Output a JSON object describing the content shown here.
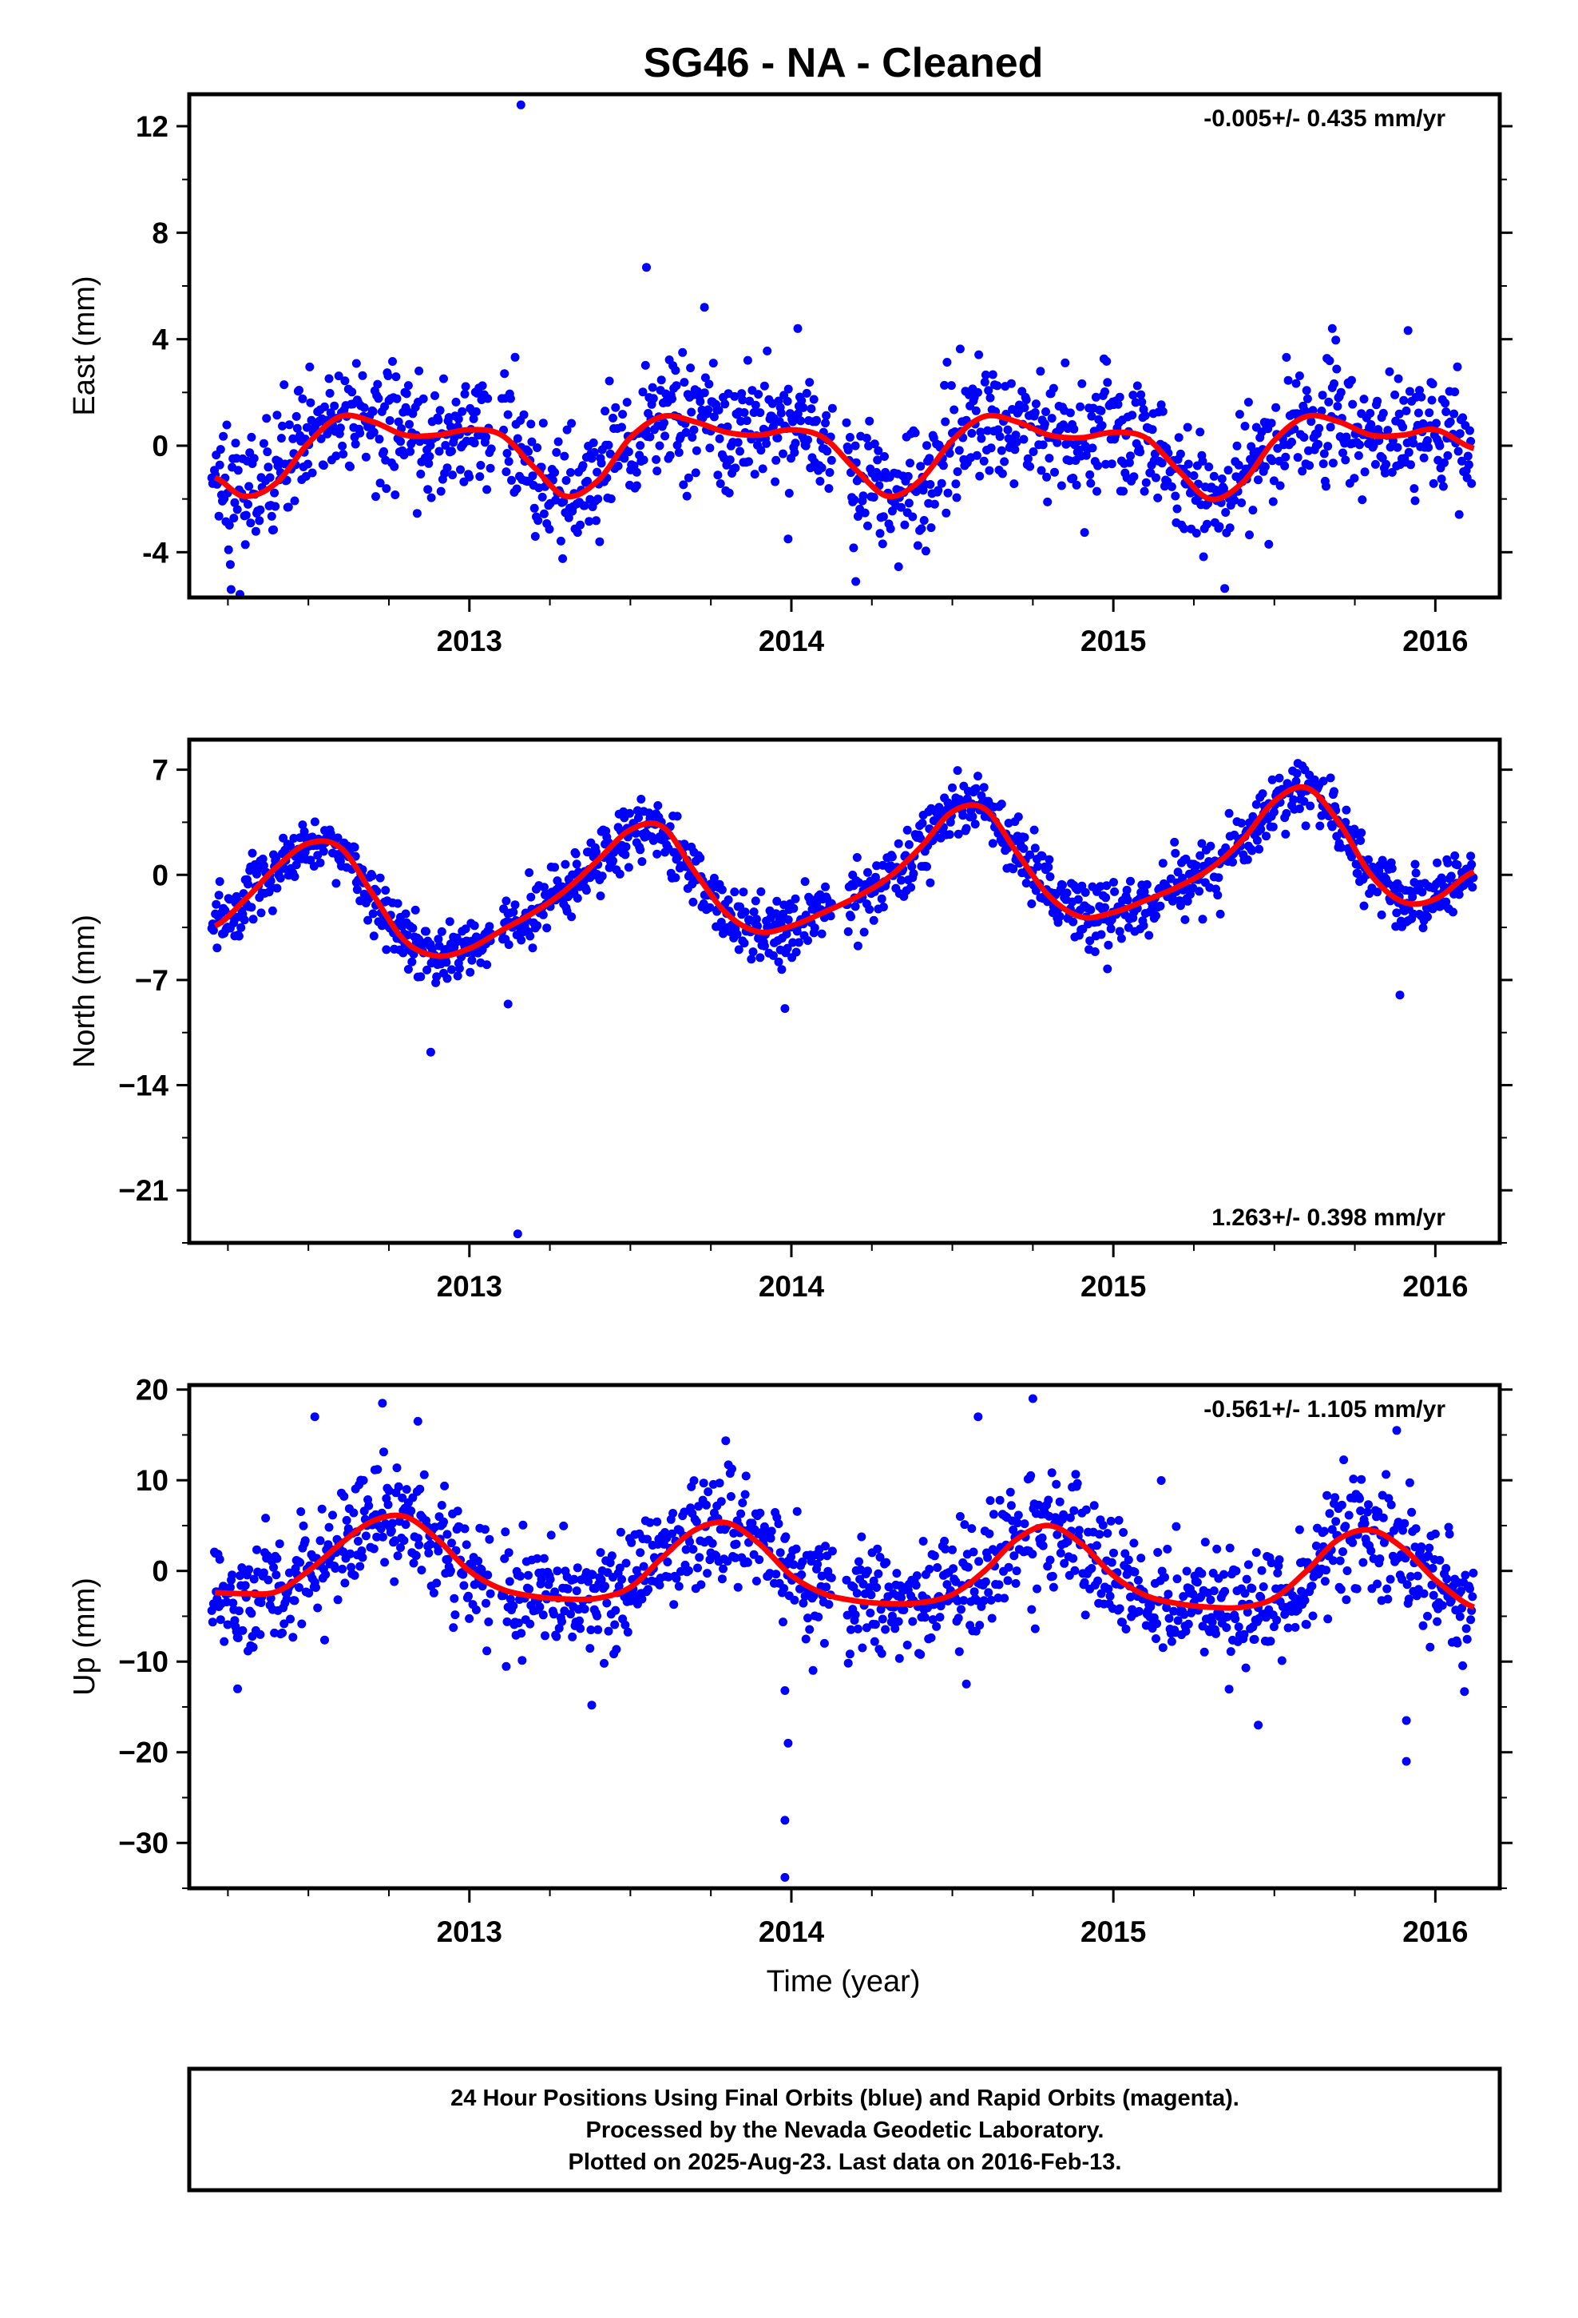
{
  "chart_data": {
    "type": "scatter",
    "title": "SG46  - NA - Cleaned",
    "xlabel": "Time (year)",
    "colors": {
      "points": "#0000ff",
      "model": "#ff0000",
      "frame": "#000000"
    },
    "grid": false,
    "panels": [
      {
        "ylabel": "East (mm)",
        "rate": "-0.005+/- 0.435 mm/yr",
        "rate_position": "top-right",
        "xlim": [
          2012.13,
          2016.2
        ],
        "ylim": [
          -5.7,
          13.2
        ],
        "yticks": [
          -4,
          0,
          4,
          8,
          12
        ],
        "ytick_labels": [
          "-4",
          "0",
          "4",
          "8",
          "12"
        ],
        "xticks": [
          2013,
          2014,
          2015,
          2016
        ],
        "xtick_labels": [
          "2013",
          "2014",
          "2015",
          "2016"
        ],
        "model": {
          "x": [
            2012.21,
            2012.3,
            2012.4,
            2012.5,
            2012.6,
            2012.7,
            2012.8,
            2012.9,
            2013.0,
            2013.1,
            2013.2,
            2013.3,
            2013.4,
            2013.5,
            2013.6,
            2013.7,
            2013.8,
            2013.9,
            2014.0,
            2014.1,
            2014.2,
            2014.3,
            2014.4,
            2014.5,
            2014.6,
            2014.7,
            2014.8,
            2014.9,
            2015.0,
            2015.1,
            2015.2,
            2015.3,
            2015.4,
            2015.5,
            2015.6,
            2015.7,
            2015.8,
            2015.9,
            2016.0,
            2016.12
          ],
          "y": [
            -1.2,
            -1.9,
            -1.4,
            0.1,
            1.1,
            0.9,
            0.4,
            0.4,
            0.6,
            0.4,
            -0.8,
            -1.9,
            -1.3,
            0.3,
            1.1,
            0.9,
            0.5,
            0.4,
            0.6,
            0.3,
            -0.9,
            -1.9,
            -1.3,
            0.2,
            1.1,
            0.9,
            0.4,
            0.3,
            0.5,
            0.3,
            -0.9,
            -2.0,
            -1.4,
            0.2,
            1.1,
            0.9,
            0.4,
            0.4,
            0.6,
            -0.1
          ]
        },
        "outliers": [
          {
            "x": 2013.16,
            "y": 12.8
          },
          {
            "x": 2013.55,
            "y": 6.7
          },
          {
            "x": 2013.73,
            "y": 5.2
          },
          {
            "x": 2014.02,
            "y": 4.4
          },
          {
            "x": 2012.26,
            "y": -5.4
          },
          {
            "x": 2013.52,
            "y": -1.5
          },
          {
            "x": 2013.99,
            "y": -3.5
          },
          {
            "x": 2014.2,
            "y": -5.1
          },
          {
            "x": 2015.68,
            "y": 4.4
          }
        ],
        "noise": 1.15
      },
      {
        "ylabel": "North (mm)",
        "rate": "1.263+/- 0.398 mm/yr",
        "rate_position": "bottom-right",
        "xlim": [
          2012.13,
          2016.2
        ],
        "ylim": [
          -24.5,
          9.0
        ],
        "yticks": [
          -21,
          -14,
          -7,
          0,
          7
        ],
        "ytick_labels": [
          "−21",
          "−14",
          "−7",
          "0",
          "7"
        ],
        "xticks": [
          2013,
          2014,
          2015,
          2016
        ],
        "xtick_labels": [
          "2013",
          "2014",
          "2015",
          "2016"
        ],
        "model": {
          "x": [
            2012.21,
            2012.3,
            2012.4,
            2012.5,
            2012.6,
            2012.7,
            2012.8,
            2012.9,
            2013.0,
            2013.1,
            2013.2,
            2013.3,
            2013.4,
            2013.5,
            2013.6,
            2013.7,
            2013.8,
            2013.9,
            2014.0,
            2014.1,
            2014.2,
            2014.3,
            2014.4,
            2014.5,
            2014.6,
            2014.7,
            2014.8,
            2014.9,
            2015.0,
            2015.1,
            2015.2,
            2015.3,
            2015.4,
            2015.5,
            2015.6,
            2015.7,
            2015.8,
            2015.9,
            2016.0,
            2016.12
          ],
          "y": [
            -3.4,
            -1.7,
            0.5,
            2.1,
            1.8,
            -1.3,
            -4.4,
            -5.4,
            -4.9,
            -3.7,
            -2.5,
            -1.0,
            1.0,
            3.0,
            3.2,
            0.2,
            -2.6,
            -3.8,
            -3.4,
            -2.5,
            -1.5,
            -0.2,
            1.8,
            4.2,
            4.4,
            1.5,
            -1.4,
            -2.8,
            -2.5,
            -1.7,
            -0.8,
            0.4,
            2.3,
            4.9,
            5.8,
            3.5,
            0.0,
            -1.8,
            -1.6,
            0.2
          ]
        },
        "outliers": [
          {
            "x": 2012.88,
            "y": -11.8
          },
          {
            "x": 2013.15,
            "y": -23.9
          },
          {
            "x": 2013.98,
            "y": -8.9
          },
          {
            "x": 2013.97,
            "y": -6.3
          },
          {
            "x": 2013.12,
            "y": -8.6
          },
          {
            "x": 2012.84,
            "y": -6.8
          },
          {
            "x": 2015.89,
            "y": -8.0
          }
        ],
        "noise": 1.05
      },
      {
        "ylabel": "Up (mm)",
        "rate": "-0.561+/- 1.105 mm/yr",
        "rate_position": "top-right",
        "xlim": [
          2012.13,
          2016.2
        ],
        "ylim": [
          -35.0,
          20.5
        ],
        "yticks": [
          -30,
          -20,
          -10,
          0,
          10,
          20
        ],
        "ytick_labels": [
          "−30",
          "−20",
          "−10",
          "0",
          "10",
          "20"
        ],
        "xticks": [
          2013,
          2014,
          2015,
          2016
        ],
        "xtick_labels": [
          "2013",
          "2014",
          "2015",
          "2016"
        ],
        "model": {
          "x": [
            2012.21,
            2012.3,
            2012.4,
            2012.5,
            2012.6,
            2012.7,
            2012.8,
            2012.9,
            2013.0,
            2013.1,
            2013.2,
            2013.3,
            2013.4,
            2013.5,
            2013.6,
            2013.7,
            2013.8,
            2013.9,
            2014.0,
            2014.1,
            2014.2,
            2014.3,
            2014.4,
            2014.5,
            2014.6,
            2014.7,
            2014.8,
            2014.9,
            2015.0,
            2015.1,
            2015.2,
            2015.3,
            2015.4,
            2015.5,
            2015.6,
            2015.7,
            2015.8,
            2015.9,
            2016.0,
            2016.12
          ],
          "y": [
            -2.4,
            -2.5,
            -2.3,
            0.0,
            3.0,
            5.5,
            6.0,
            3.5,
            0.0,
            -2.0,
            -2.8,
            -3.1,
            -3.0,
            -1.8,
            1.5,
            4.5,
            5.3,
            3.0,
            -0.5,
            -2.5,
            -3.3,
            -3.6,
            -3.5,
            -2.6,
            0.0,
            3.5,
            5.0,
            3.0,
            -0.5,
            -2.7,
            -3.6,
            -4.0,
            -4.0,
            -3.0,
            0.0,
            3.5,
            4.5,
            2.5,
            -1.0,
            -4.0
          ]
        },
        "outliers": [
          {
            "x": 2012.52,
            "y": 17.0
          },
          {
            "x": 2012.73,
            "y": 18.5
          },
          {
            "x": 2012.84,
            "y": 16.5
          },
          {
            "x": 2014.58,
            "y": 17.0
          },
          {
            "x": 2014.75,
            "y": 19.0
          },
          {
            "x": 2015.88,
            "y": 15.5
          },
          {
            "x": 2013.98,
            "y": -13.2
          },
          {
            "x": 2013.99,
            "y": -19.0
          },
          {
            "x": 2013.98,
            "y": -27.5
          },
          {
            "x": 2013.98,
            "y": -33.8
          },
          {
            "x": 2015.91,
            "y": -21.0
          },
          {
            "x": 2015.91,
            "y": -16.5
          },
          {
            "x": 2015.45,
            "y": -17.0
          },
          {
            "x": 2013.38,
            "y": -14.8
          },
          {
            "x": 2012.28,
            "y": -13.0
          }
        ],
        "noise": 3.2
      }
    ],
    "data_span": [
      2012.2,
      2016.12
    ],
    "gaps": [
      [
        2013.07,
        2013.1
      ],
      [
        2014.13,
        2014.17
      ]
    ]
  },
  "footer": {
    "line1": "24 Hour Positions Using Final Orbits (blue) and Rapid Orbits (magenta).",
    "line2": "Processed by the Nevada Geodetic Laboratory.",
    "line3": "Plotted on 2025-Aug-23. Last data on 2016-Feb-13."
  }
}
